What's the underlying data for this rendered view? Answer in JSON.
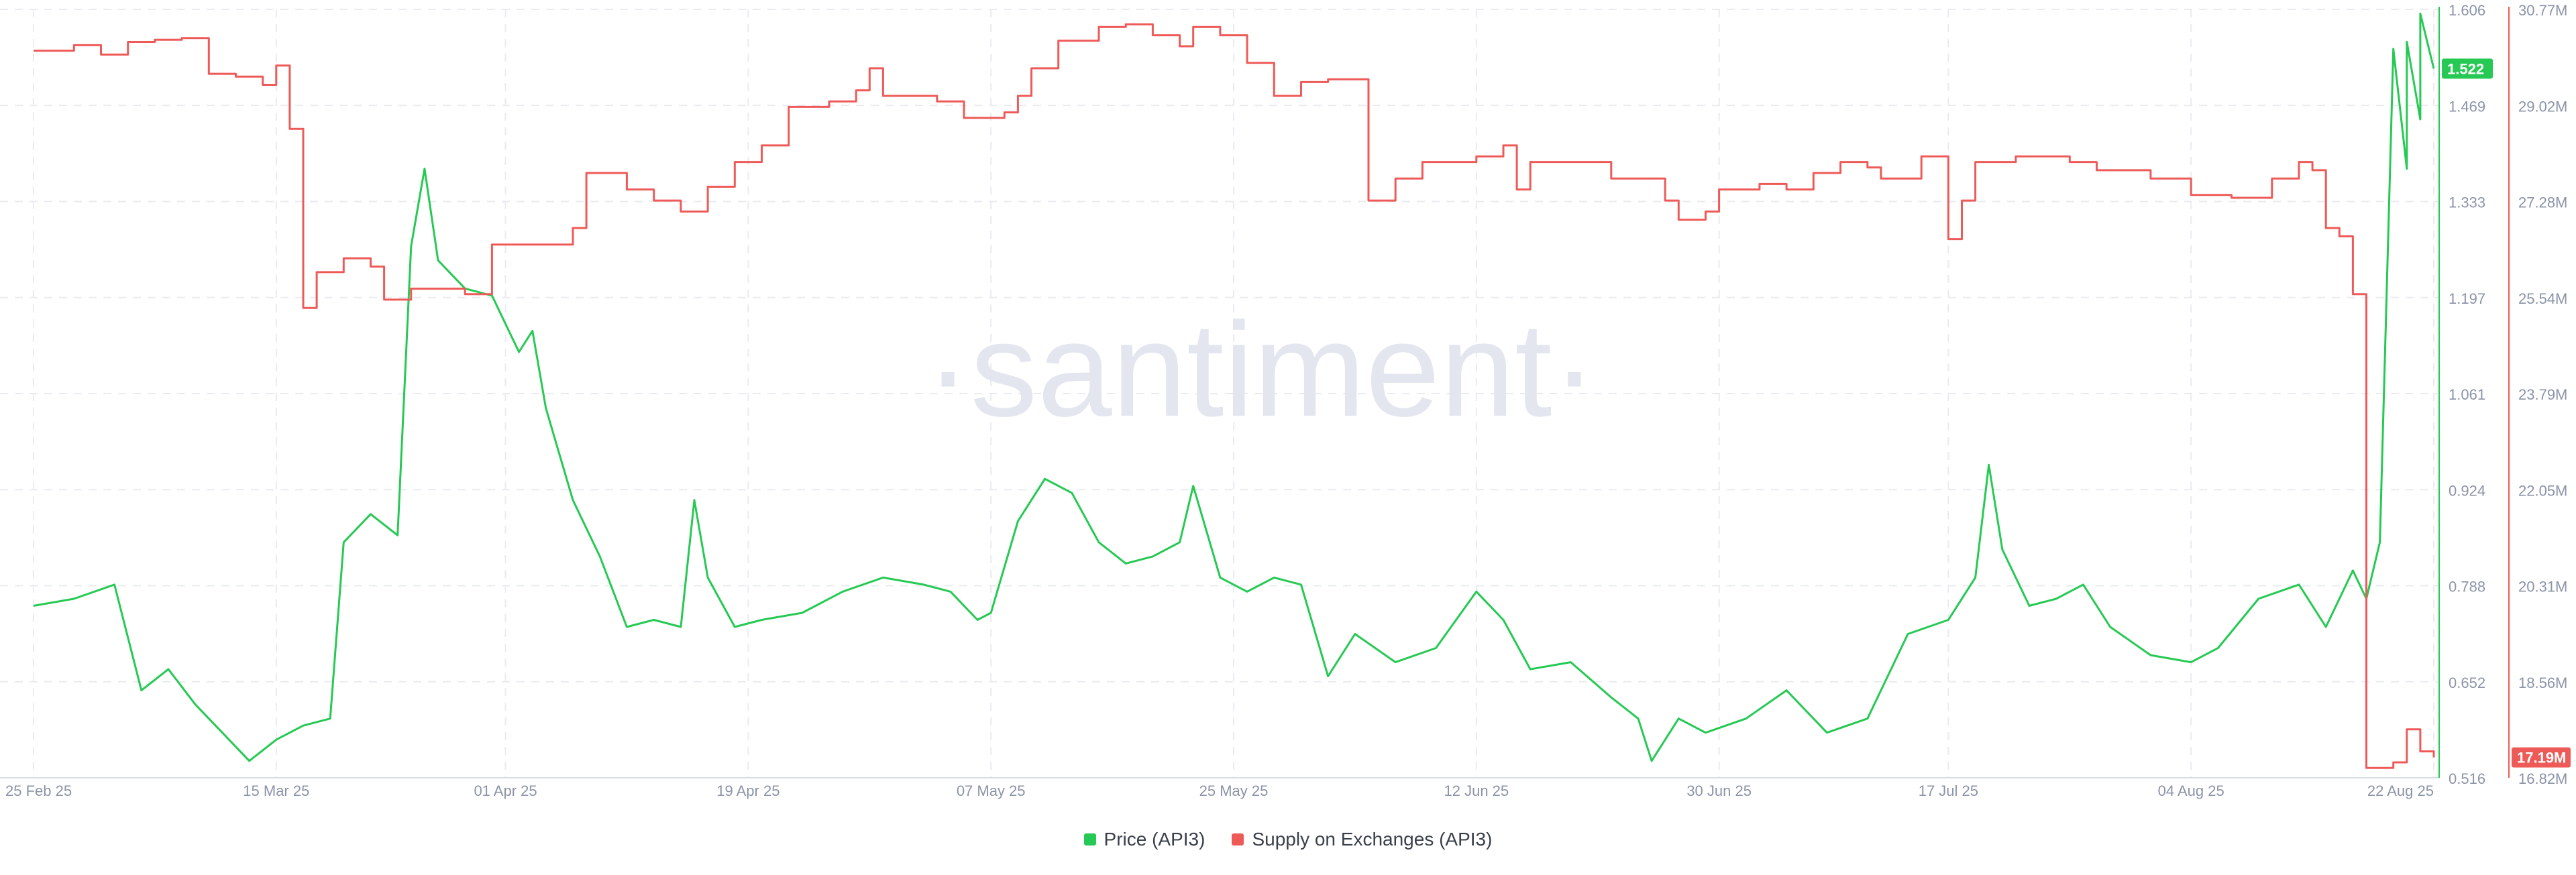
{
  "watermark": "·santiment·",
  "chart_data": {
    "type": "line",
    "x": [
      "25 Feb 25",
      "15 Mar 25",
      "01 Apr 25",
      "19 Apr 25",
      "07 May 25",
      "25 May 25",
      "12 Jun 25",
      "30 Jun 25",
      "17 Jul 25",
      "04 Aug 25",
      "22 Aug 25"
    ],
    "axes": {
      "price_ticks": [
        "1.606",
        "1.469",
        "1.333",
        "1.197",
        "1.061",
        "0.924",
        "0.788",
        "0.652",
        "0.516"
      ],
      "price_range": [
        0.516,
        1.606
      ],
      "supply_ticks": [
        "30.77M",
        "29.02M",
        "27.28M",
        "25.54M",
        "23.79M",
        "22.05M",
        "20.31M",
        "18.56M",
        "16.82M"
      ],
      "supply_range": [
        16.82,
        30.77
      ]
    },
    "grid": true,
    "legend_position": "bottom-center",
    "series": [
      {
        "name": "Price (API3)",
        "axis": "left",
        "color": "#26c953",
        "current_label": "1.522",
        "points": [
          [
            "25 Feb 25",
            0.76
          ],
          [
            "28 Feb 25",
            0.77
          ],
          [
            "03 Mar 25",
            0.79
          ],
          [
            "05 Mar 25",
            0.64
          ],
          [
            "07 Mar 25",
            0.67
          ],
          [
            "09 Mar 25",
            0.62
          ],
          [
            "11 Mar 25",
            0.58
          ],
          [
            "13 Mar 25",
            0.54
          ],
          [
            "15 Mar 25",
            0.57
          ],
          [
            "17 Mar 25",
            0.59
          ],
          [
            "19 Mar 25",
            0.6
          ],
          [
            "20 Mar 25",
            0.85
          ],
          [
            "22 Mar 25",
            0.89
          ],
          [
            "24 Mar 25",
            0.86
          ],
          [
            "25 Mar 25",
            1.27
          ],
          [
            "26 Mar 25",
            1.38
          ],
          [
            "27 Mar 25",
            1.25
          ],
          [
            "29 Mar 25",
            1.21
          ],
          [
            "31 Mar 25",
            1.2
          ],
          [
            "02 Apr 25",
            1.12
          ],
          [
            "03 Apr 25",
            1.15
          ],
          [
            "04 Apr 25",
            1.04
          ],
          [
            "06 Apr 25",
            0.91
          ],
          [
            "08 Apr 25",
            0.83
          ],
          [
            "10 Apr 25",
            0.73
          ],
          [
            "12 Apr 25",
            0.74
          ],
          [
            "14 Apr 25",
            0.73
          ],
          [
            "15 Apr 25",
            0.91
          ],
          [
            "16 Apr 25",
            0.8
          ],
          [
            "18 Apr 25",
            0.73
          ],
          [
            "20 Apr 25",
            0.74
          ],
          [
            "23 Apr 25",
            0.75
          ],
          [
            "26 Apr 25",
            0.78
          ],
          [
            "29 Apr 25",
            0.8
          ],
          [
            "02 May 25",
            0.79
          ],
          [
            "04 May 25",
            0.78
          ],
          [
            "06 May 25",
            0.74
          ],
          [
            "07 May 25",
            0.75
          ],
          [
            "09 May 25",
            0.88
          ],
          [
            "11 May 25",
            0.94
          ],
          [
            "13 May 25",
            0.92
          ],
          [
            "15 May 25",
            0.85
          ],
          [
            "17 May 25",
            0.82
          ],
          [
            "19 May 25",
            0.83
          ],
          [
            "21 May 25",
            0.85
          ],
          [
            "22 May 25",
            0.93
          ],
          [
            "24 May 25",
            0.8
          ],
          [
            "26 May 25",
            0.78
          ],
          [
            "28 May 25",
            0.8
          ],
          [
            "30 May 25",
            0.79
          ],
          [
            "01 Jun 25",
            0.66
          ],
          [
            "03 Jun 25",
            0.72
          ],
          [
            "06 Jun 25",
            0.68
          ],
          [
            "09 Jun 25",
            0.7
          ],
          [
            "12 Jun 25",
            0.78
          ],
          [
            "14 Jun 25",
            0.74
          ],
          [
            "16 Jun 25",
            0.67
          ],
          [
            "19 Jun 25",
            0.68
          ],
          [
            "22 Jun 25",
            0.63
          ],
          [
            "24 Jun 25",
            0.6
          ],
          [
            "25 Jun 25",
            0.54
          ],
          [
            "27 Jun 25",
            0.6
          ],
          [
            "29 Jun 25",
            0.58
          ],
          [
            "02 Jul 25",
            0.6
          ],
          [
            "05 Jul 25",
            0.64
          ],
          [
            "08 Jul 25",
            0.58
          ],
          [
            "11 Jul 25",
            0.6
          ],
          [
            "14 Jul 25",
            0.72
          ],
          [
            "17 Jul 25",
            0.74
          ],
          [
            "19 Jul 25",
            0.8
          ],
          [
            "20 Jul 25",
            0.96
          ],
          [
            "21 Jul 25",
            0.84
          ],
          [
            "23 Jul 25",
            0.76
          ],
          [
            "25 Jul 25",
            0.77
          ],
          [
            "27 Jul 25",
            0.79
          ],
          [
            "29 Jul 25",
            0.73
          ],
          [
            "01 Aug 25",
            0.69
          ],
          [
            "04 Aug 25",
            0.68
          ],
          [
            "06 Aug 25",
            0.7
          ],
          [
            "09 Aug 25",
            0.77
          ],
          [
            "12 Aug 25",
            0.79
          ],
          [
            "14 Aug 25",
            0.73
          ],
          [
            "16 Aug 25",
            0.81
          ],
          [
            "17 Aug 25",
            0.77
          ],
          [
            "18 Aug 25",
            0.85
          ],
          [
            "19 Aug 25",
            1.55
          ],
          [
            "20 Aug 25",
            1.38
          ],
          [
            "20 Aug 25",
            1.56
          ],
          [
            "21 Aug 25",
            1.45
          ],
          [
            "21 Aug 25",
            1.6
          ],
          [
            "22 Aug 25",
            1.522
          ]
        ]
      },
      {
        "name": "Supply on Exchanges (API3)",
        "axis": "right",
        "color": "#ee5a58",
        "current_label": "17.19M",
        "points": [
          [
            "25 Feb 25",
            30.02
          ],
          [
            "28 Feb 25",
            30.12
          ],
          [
            "02 Mar 25",
            29.95
          ],
          [
            "04 Mar 25",
            30.18
          ],
          [
            "06 Mar 25",
            30.22
          ],
          [
            "08 Mar 25",
            30.25
          ],
          [
            "10 Mar 25",
            29.6
          ],
          [
            "12 Mar 25",
            29.55
          ],
          [
            "14 Mar 25",
            29.4
          ],
          [
            "15 Mar 25",
            29.75
          ],
          [
            "16 Mar 25",
            28.6
          ],
          [
            "17 Mar 25",
            25.35
          ],
          [
            "18 Mar 25",
            26.0
          ],
          [
            "20 Mar 25",
            26.25
          ],
          [
            "22 Mar 25",
            26.1
          ],
          [
            "23 Mar 25",
            25.5
          ],
          [
            "25 Mar 25",
            25.7
          ],
          [
            "29 Mar 25",
            25.6
          ],
          [
            "31 Mar 25",
            26.5
          ],
          [
            "03 Apr 25",
            26.5
          ],
          [
            "06 Apr 25",
            26.8
          ],
          [
            "07 Apr 25",
            27.8
          ],
          [
            "10 Apr 25",
            27.5
          ],
          [
            "12 Apr 25",
            27.3
          ],
          [
            "14 Apr 25",
            27.1
          ],
          [
            "16 Apr 25",
            27.55
          ],
          [
            "18 Apr 25",
            28.0
          ],
          [
            "20 Apr 25",
            28.3
          ],
          [
            "22 Apr 25",
            29.0
          ],
          [
            "25 Apr 25",
            29.1
          ],
          [
            "27 Apr 25",
            29.3
          ],
          [
            "28 Apr 25",
            29.7
          ],
          [
            "29 Apr 25",
            29.2
          ],
          [
            "03 May 25",
            29.1
          ],
          [
            "05 May 25",
            28.8
          ],
          [
            "08 May 25",
            28.9
          ],
          [
            "09 May 25",
            29.2
          ],
          [
            "10 May 25",
            29.7
          ],
          [
            "12 May 25",
            30.2
          ],
          [
            "15 May 25",
            30.45
          ],
          [
            "17 May 25",
            30.5
          ],
          [
            "19 May 25",
            30.3
          ],
          [
            "21 May 25",
            30.1
          ],
          [
            "22 May 25",
            30.45
          ],
          [
            "24 May 25",
            30.3
          ],
          [
            "26 May 25",
            29.8
          ],
          [
            "28 May 25",
            29.2
          ],
          [
            "30 May 25",
            29.45
          ],
          [
            "01 Jun 25",
            29.5
          ],
          [
            "03 Jun 25",
            29.5
          ],
          [
            "04 Jun 25",
            27.3
          ],
          [
            "06 Jun 25",
            27.7
          ],
          [
            "08 Jun 25",
            28.0
          ],
          [
            "12 Jun 25",
            28.1
          ],
          [
            "14 Jun 25",
            28.3
          ],
          [
            "15 Jun 25",
            27.5
          ],
          [
            "16 Jun 25",
            28.0
          ],
          [
            "20 Jun 25",
            28.0
          ],
          [
            "22 Jun 25",
            27.7
          ],
          [
            "26 Jun 25",
            27.3
          ],
          [
            "27 Jun 25",
            26.95
          ],
          [
            "29 Jun 25",
            27.1
          ],
          [
            "30 Jun 25",
            27.5
          ],
          [
            "03 Jul 25",
            27.6
          ],
          [
            "05 Jul 25",
            27.5
          ],
          [
            "07 Jul 25",
            27.8
          ],
          [
            "09 Jul 25",
            28.0
          ],
          [
            "11 Jul 25",
            27.9
          ],
          [
            "12 Jul 25",
            27.7
          ],
          [
            "15 Jul 25",
            28.1
          ],
          [
            "17 Jul 25",
            26.6
          ],
          [
            "18 Jul 25",
            27.3
          ],
          [
            "19 Jul 25",
            28.0
          ],
          [
            "22 Jul 25",
            28.1
          ],
          [
            "26 Jul 25",
            28.0
          ],
          [
            "28 Jul 25",
            27.85
          ],
          [
            "01 Aug 25",
            27.7
          ],
          [
            "04 Aug 25",
            27.4
          ],
          [
            "07 Aug 25",
            27.35
          ],
          [
            "10 Aug 25",
            27.7
          ],
          [
            "12 Aug 25",
            28.0
          ],
          [
            "13 Aug 25",
            27.85
          ],
          [
            "14 Aug 25",
            26.8
          ],
          [
            "15 Aug 25",
            26.65
          ],
          [
            "16 Aug 25",
            25.6
          ],
          [
            "17 Aug 25",
            20.8
          ],
          [
            "17 Aug 25",
            17.0
          ],
          [
            "19 Aug 25",
            17.1
          ],
          [
            "20 Aug 25",
            17.7
          ],
          [
            "21 Aug 25",
            17.3
          ],
          [
            "22 Aug 25",
            17.19
          ]
        ]
      }
    ]
  }
}
